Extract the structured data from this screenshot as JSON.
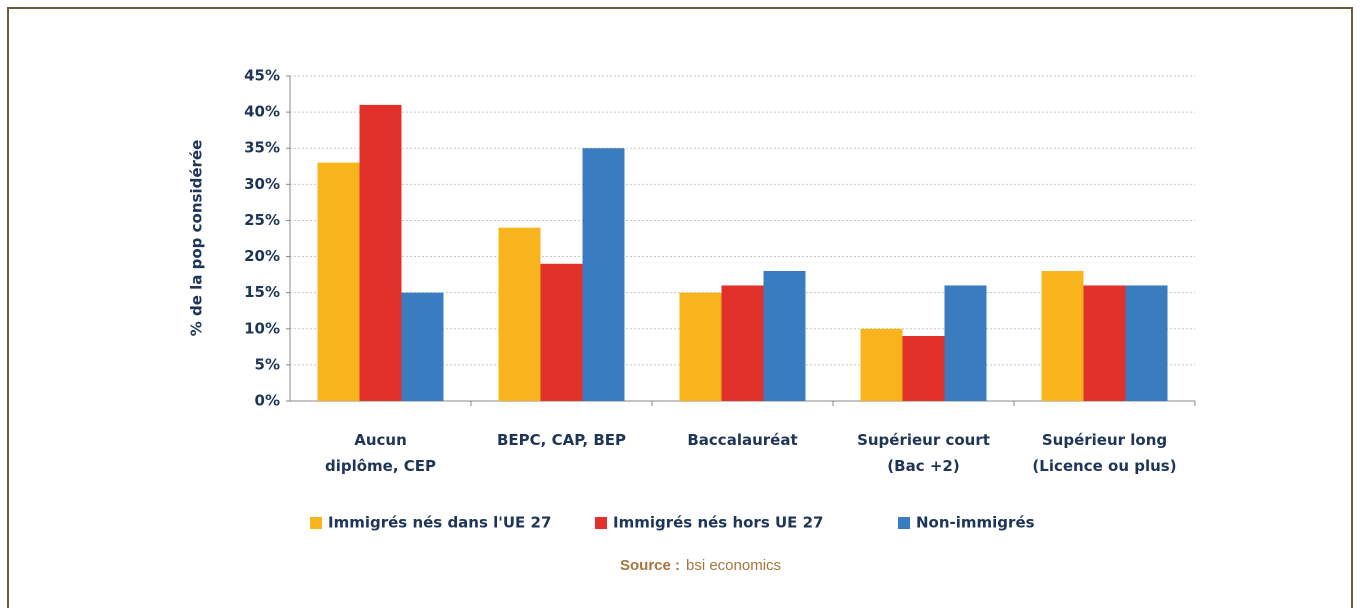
{
  "chart_data": {
    "type": "bar",
    "ylabel": "% de la pop considérée",
    "categories": [
      "Aucun\ndiplôme, CEP",
      "BEPC, CAP, BEP",
      "Baccalauréat",
      "Supérieur court\n(Bac +2)",
      "Supérieur long\n(Licence ou plus)"
    ],
    "series": [
      {
        "name": "Immigrés nés dans l'UE 27",
        "color": "#f8b41c",
        "values": [
          33,
          24,
          15,
          10,
          18
        ]
      },
      {
        "name": "Immigrés nés hors UE 27",
        "color": "#e2312b",
        "values": [
          41,
          19,
          16,
          9,
          16
        ]
      },
      {
        "name": "Non-immigrés",
        "color": "#3a7cc0",
        "values": [
          15,
          35,
          18,
          16,
          16
        ]
      }
    ],
    "ylim": [
      0,
      45
    ],
    "yticks": [
      {
        "value": 0,
        "label": "0%"
      },
      {
        "value": 5,
        "label": "5%"
      },
      {
        "value": 10,
        "label": "10%"
      },
      {
        "value": 15,
        "label": "15%"
      },
      {
        "value": 20,
        "label": "20%"
      },
      {
        "value": 25,
        "label": "25%"
      },
      {
        "value": 30,
        "label": "30%"
      },
      {
        "value": 35,
        "label": "35%"
      },
      {
        "value": 40,
        "label": "40%"
      },
      {
        "value": 45,
        "label": "45%"
      }
    ],
    "grid": true,
    "legend": "bottom",
    "source_label": "Source :",
    "source": "bsi economics"
  }
}
